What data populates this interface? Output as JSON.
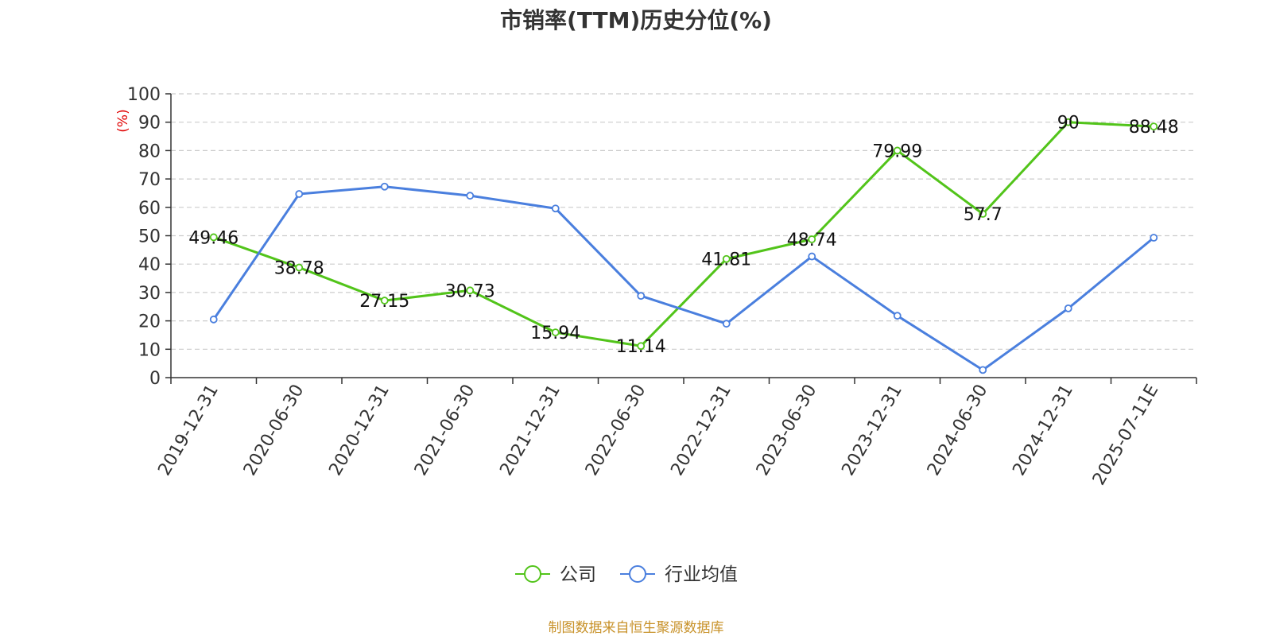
{
  "title": "市销率(TTM)历史分位(%)",
  "footer": "制图数据来自恒生聚源数据库",
  "chart_data": {
    "type": "line",
    "title": "市销率(TTM)历史分位(%)",
    "xlabel": "",
    "ylabel": "(%)",
    "ylim": [
      0,
      100
    ],
    "yticks": [
      0,
      10,
      20,
      30,
      40,
      50,
      60,
      70,
      80,
      90,
      100
    ],
    "grid": true,
    "legend_position": "bottom-center",
    "categories": [
      "2019-12-31",
      "2020-06-30",
      "2020-12-31",
      "2021-06-30",
      "2021-12-31",
      "2022-06-30",
      "2022-12-31",
      "2023-06-30",
      "2023-12-31",
      "2024-06-30",
      "2024-12-31",
      "2025-07-11E"
    ],
    "series": [
      {
        "name": "公司",
        "color": "#52c41a",
        "values": [
          49.46,
          38.78,
          27.15,
          30.73,
          15.94,
          11.14,
          41.81,
          48.74,
          79.99,
          57.7,
          90,
          88.48
        ],
        "labels": [
          "49.46",
          "38.78",
          "27.15",
          "30.73",
          "15.94",
          "11.14",
          "41.81",
          "48.74",
          "79.99",
          "57.7",
          "90",
          "88.48"
        ],
        "show_labels": true
      },
      {
        "name": "行业均值",
        "color": "#4a7fde",
        "values": [
          20.5,
          64.7,
          67.3,
          64.1,
          59.6,
          28.8,
          19.0,
          42.7,
          21.8,
          2.7,
          24.4,
          49.3
        ],
        "show_labels": false
      }
    ]
  }
}
